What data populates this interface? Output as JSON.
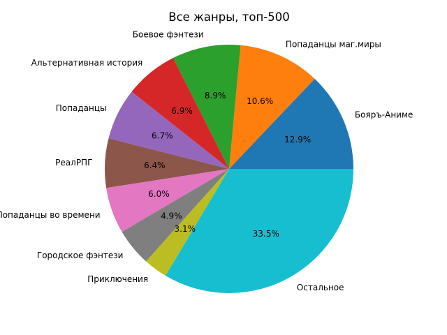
{
  "chart_data": {
    "type": "pie",
    "title": "Все жанры, топ-500",
    "start_angle_deg": 0,
    "direction": "counterclockwise",
    "slices": [
      {
        "label": "Бояръ-Аниме",
        "value": 12.9,
        "pct_label": "12.9%",
        "color": "#1f77b4"
      },
      {
        "label": "Попаданцы маг.миры",
        "value": 10.6,
        "pct_label": "10.6%",
        "color": "#ff7f0e"
      },
      {
        "label": "Боевое фэнтези",
        "value": 8.9,
        "pct_label": "8.9%",
        "color": "#2ca02c"
      },
      {
        "label": "Альтернативная история",
        "value": 6.9,
        "pct_label": "6.9%",
        "color": "#d62728"
      },
      {
        "label": "Попаданцы",
        "value": 6.7,
        "pct_label": "6.7%",
        "color": "#9467bd"
      },
      {
        "label": "РеалРПГ",
        "value": 6.4,
        "pct_label": "6.4%",
        "color": "#8c564b"
      },
      {
        "label": "Попаданцы во времени",
        "value": 6.0,
        "pct_label": "6.0%",
        "color": "#e377c2"
      },
      {
        "label": "Городское фэнтези",
        "value": 4.9,
        "pct_label": "4.9%",
        "color": "#7f7f7f"
      },
      {
        "label": "Приключения",
        "value": 3.1,
        "pct_label": "3.1%",
        "color": "#bcbd22"
      },
      {
        "label": "Остальное",
        "value": 33.5,
        "pct_label": "33.5%",
        "color": "#17becf"
      }
    ]
  }
}
